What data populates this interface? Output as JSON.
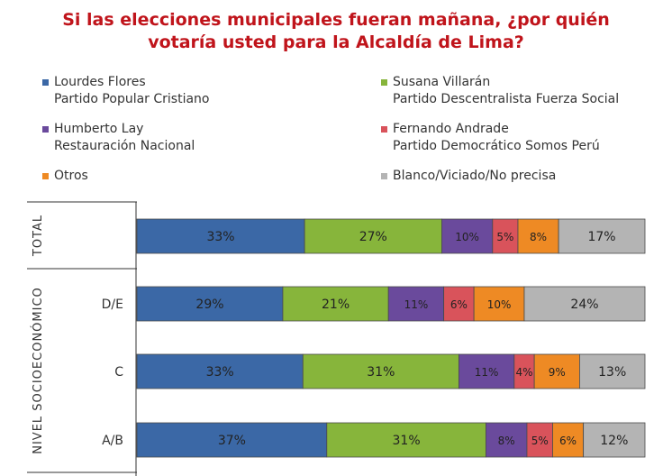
{
  "title_lines": [
    "Si las elecciones municipales fueran mañana, ¿por quién",
    "votaría usted para la Alcaldía de Lima?"
  ],
  "chart_data": {
    "type": "bar",
    "orientation": "horizontal",
    "stacked": true,
    "percent_suffix": "%",
    "groups": [
      {
        "label": "TOTAL",
        "rows": [
          ""
        ]
      },
      {
        "label": "NIVEL SOCIOECONÓMICO",
        "rows": [
          "D/E",
          "C",
          "A/B"
        ]
      }
    ],
    "categories": [
      "TOTAL",
      "D/E",
      "C",
      "A/B"
    ],
    "series": [
      {
        "name": "Lourdes Flores",
        "party": "Partido Popular Cristiano",
        "color": "#3b68a6",
        "values": [
          33,
          29,
          33,
          37
        ]
      },
      {
        "name": "Susana Villarán",
        "party": "Partido Descentralista Fuerza Social",
        "color": "#87b53b",
        "values": [
          27,
          21,
          31,
          31
        ]
      },
      {
        "name": "Humberto Lay",
        "party": "Restauración Nacional",
        "color": "#6a4a9c",
        "values": [
          10,
          11,
          11,
          8
        ]
      },
      {
        "name": "Fernando Andrade",
        "party": "Partido Democrático Somos Perú",
        "color": "#d9535b",
        "values": [
          5,
          6,
          4,
          5
        ]
      },
      {
        "name": "Otros",
        "party": "",
        "color": "#ee8a24",
        "values": [
          8,
          10,
          9,
          6
        ]
      },
      {
        "name": "Blanco/Viciado/No precisa",
        "party": "",
        "color": "#b4b4b4",
        "values": [
          17,
          24,
          13,
          12
        ]
      }
    ],
    "xlim": [
      0,
      100
    ]
  }
}
